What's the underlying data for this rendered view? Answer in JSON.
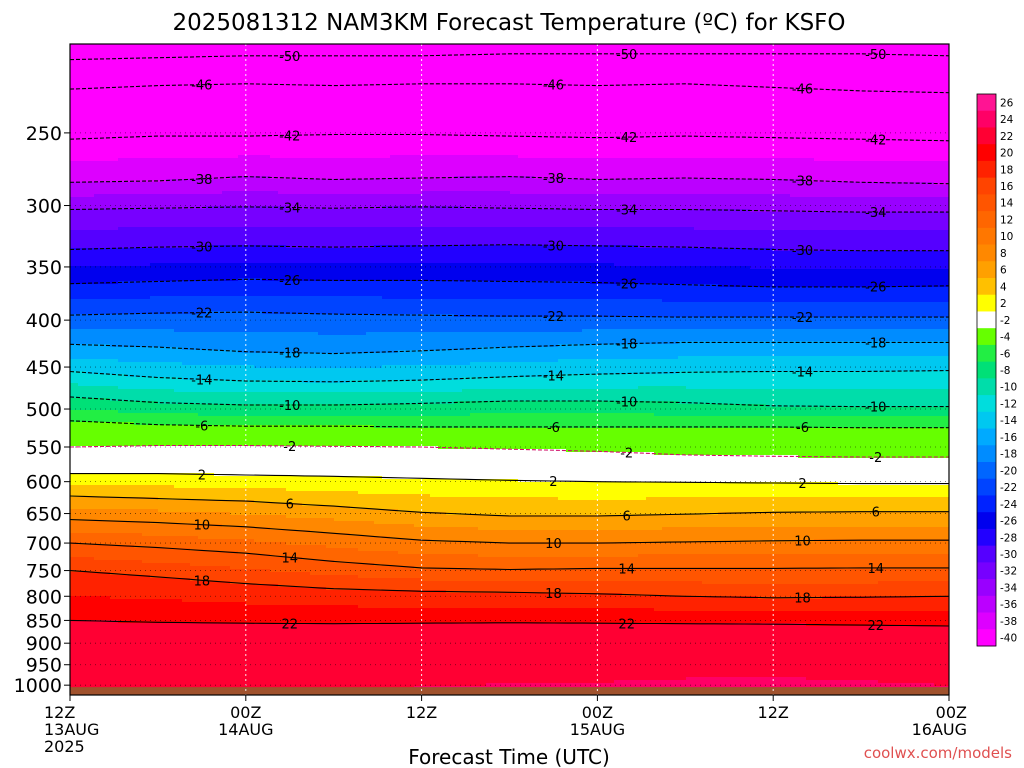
{
  "chart_data": {
    "type": "heatmap",
    "title": "2025081312 NAM3KM Forecast Temperature (ºC) for KSFO",
    "xlabel": "Forecast Time (UTC)",
    "ylabel": "",
    "x_ticks": [
      {
        "hour": 0,
        "label1": "12Z",
        "label2": "13AUG",
        "label3": "2025"
      },
      {
        "hour": 12,
        "label1": "00Z",
        "label2": "14AUG",
        "label3": ""
      },
      {
        "hour": 24,
        "label1": "12Z",
        "label2": "",
        "label3": ""
      },
      {
        "hour": 36,
        "label1": "00Z",
        "label2": "15AUG",
        "label3": ""
      },
      {
        "hour": 48,
        "label1": "12Z",
        "label2": "",
        "label3": ""
      },
      {
        "hour": 60,
        "label1": "00Z",
        "label2": "16AUG",
        "label3": ""
      }
    ],
    "xlim_hours": [
      0,
      60
    ],
    "y_ticks": [
      250,
      300,
      350,
      400,
      450,
      500,
      550,
      600,
      650,
      700,
      750,
      800,
      850,
      900,
      950,
      1000
    ],
    "ylim_hpa": [
      200,
      1025
    ],
    "y_scale": "log-pressure",
    "colorbar_labels": [
      "26",
      "24",
      "22",
      "20",
      "18",
      "16",
      "14",
      "12",
      "10",
      "8",
      "6",
      "4",
      "2",
      "-2",
      "-4",
      "-6",
      "-8",
      "-10",
      "-12",
      "-14",
      "-16",
      "-18",
      "-20",
      "-22",
      "-24",
      "-26",
      "-28",
      "-30",
      "-32",
      "-34",
      "-36",
      "-38",
      "-40"
    ],
    "colorbar_colors": [
      "#ff1493",
      "#ff0066",
      "#ff0033",
      "#ff0000",
      "#ff2200",
      "#ff4400",
      "#ff5500",
      "#ff6600",
      "#ff7700",
      "#ff8800",
      "#ffa000",
      "#ffc000",
      "#ffff00",
      "#ffffff",
      "#66ff00",
      "#22ee44",
      "#00e077",
      "#00ddaa",
      "#00dddd",
      "#00c8f0",
      "#00aaff",
      "#008cff",
      "#0066ff",
      "#0044ff",
      "#0022ff",
      "#0000ee",
      "#2200ff",
      "#5500ff",
      "#7700ff",
      "#9900ff",
      "#bb00ff",
      "#dd00ff",
      "#ff00ff"
    ],
    "contours": [
      {
        "value": -50,
        "label": "-50",
        "pressure": [
          208,
          207,
          206,
          206,
          206,
          205,
          205,
          205,
          205,
          205,
          206
        ],
        "dashed": true
      },
      {
        "value": -46,
        "label": "-46",
        "pressure": [
          224,
          222,
          221,
          222,
          221,
          221,
          222,
          221,
          223,
          225,
          226
        ],
        "dashed": true
      },
      {
        "value": -42,
        "label": "-42",
        "pressure": [
          254,
          252,
          252,
          251,
          251,
          252,
          253,
          252,
          253,
          254,
          255
        ],
        "dashed": true
      },
      {
        "value": -38,
        "label": "-38",
        "pressure": [
          283,
          282,
          279,
          281,
          280,
          279,
          281,
          280,
          281,
          283,
          284
        ],
        "dashed": true
      },
      {
        "value": -34,
        "label": "-34",
        "pressure": [
          303,
          302,
          301,
          302,
          301,
          302,
          303,
          303,
          304,
          305,
          305
        ],
        "dashed": true
      },
      {
        "value": -30,
        "label": "-30",
        "pressure": [
          335,
          333,
          332,
          333,
          332,
          331,
          332,
          333,
          335,
          336,
          336
        ],
        "dashed": true
      },
      {
        "value": -26,
        "label": "-26",
        "pressure": [
          365,
          363,
          361,
          362,
          362,
          363,
          364,
          366,
          368,
          368,
          367
        ],
        "dashed": true
      },
      {
        "value": -22,
        "label": "-22",
        "pressure": [
          395,
          393,
          392,
          394,
          395,
          396,
          396,
          397,
          397,
          397,
          397
        ],
        "dashed": true
      },
      {
        "value": -18,
        "label": "-18",
        "pressure": [
          425,
          428,
          433,
          435,
          432,
          428,
          425,
          423,
          423,
          423,
          423
        ],
        "dashed": true
      },
      {
        "value": -14,
        "label": "-14",
        "pressure": [
          455,
          462,
          466,
          467,
          465,
          461,
          458,
          456,
          455,
          455,
          454
        ],
        "dashed": true
      },
      {
        "value": -10,
        "label": "-10",
        "pressure": [
          485,
          492,
          495,
          495,
          493,
          490,
          490,
          492,
          496,
          497,
          497
        ],
        "dashed": true
      },
      {
        "value": -6,
        "label": "-6",
        "pressure": [
          515,
          520,
          522,
          522,
          523,
          523,
          523,
          523,
          523,
          524,
          524
        ],
        "dashed": true
      },
      {
        "value": -2,
        "label": "-2",
        "pressure": [
          550,
          548,
          548,
          549,
          550,
          553,
          556,
          561,
          563,
          564,
          564
        ],
        "dashed": true
      },
      {
        "value": 2,
        "label": "2",
        "pressure": [
          588,
          588,
          590,
          592,
          595,
          598,
          600,
          601,
          602,
          603,
          603
        ],
        "dashed": false
      },
      {
        "value": 6,
        "label": "6",
        "pressure": [
          622,
          626,
          630,
          638,
          648,
          654,
          654,
          651,
          648,
          647,
          647
        ],
        "dashed": false
      },
      {
        "value": 10,
        "label": "10",
        "pressure": [
          660,
          665,
          672,
          683,
          695,
          700,
          700,
          698,
          696,
          695,
          695
        ],
        "dashed": false
      },
      {
        "value": 14,
        "label": "14",
        "pressure": [
          700,
          708,
          718,
          733,
          745,
          748,
          746,
          746,
          746,
          745,
          745
        ],
        "dashed": false
      },
      {
        "value": 18,
        "label": "18",
        "pressure": [
          750,
          762,
          775,
          785,
          790,
          792,
          795,
          800,
          803,
          802,
          800
        ],
        "dashed": false
      },
      {
        "value": 22,
        "label": "22",
        "pressure": [
          850,
          854,
          856,
          857,
          856,
          855,
          856,
          857,
          858,
          860,
          862
        ],
        "dashed": false
      }
    ],
    "watermark": "coolwx.com/models"
  }
}
